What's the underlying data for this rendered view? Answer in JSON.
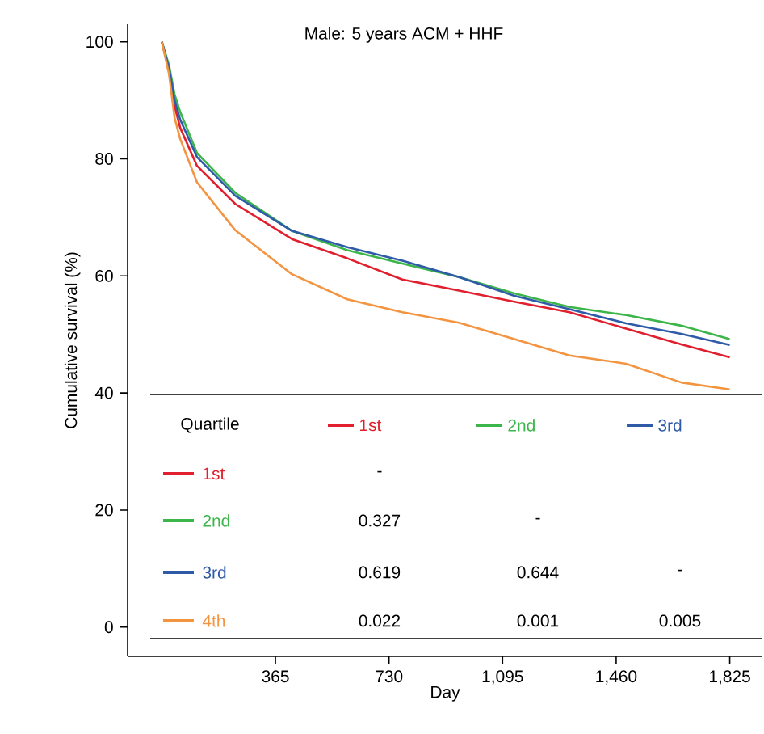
{
  "chart_data": {
    "type": "line",
    "title": "Male: 5 years ACM + HHF",
    "xlabel": "Day",
    "ylabel": "Cumulative survival (%)",
    "x": [
      0,
      23,
      41,
      59,
      113,
      236,
      418,
      596,
      773,
      955,
      1133,
      1310,
      1492,
      1669,
      1825
    ],
    "series": [
      {
        "name": "1st",
        "color": "#e0202e",
        "values": [
          100,
          95,
          89,
          85.3,
          78.8,
          72.3,
          66.3,
          63,
          59.4,
          57.5,
          55.6,
          53.8,
          51,
          48.3,
          46.1
        ]
      },
      {
        "name": "2nd",
        "color": "#3cb54a",
        "values": [
          100,
          96,
          91,
          88,
          81,
          74.2,
          67.7,
          64.4,
          62.1,
          59.8,
          57,
          54.7,
          53.3,
          51.5,
          49.2
        ]
      },
      {
        "name": "3rd",
        "color": "#2e5aa8",
        "values": [
          100,
          95.5,
          90,
          86.7,
          80.3,
          73.7,
          67.7,
          64.9,
          62.6,
          59.8,
          56.6,
          54.3,
          51.9,
          50.1,
          48.2
        ]
      },
      {
        "name": "4th",
        "color": "#f39440",
        "values": [
          100,
          94.5,
          87,
          83.4,
          76,
          67.8,
          60.3,
          56,
          53.8,
          52,
          49.2,
          46.4,
          45,
          41.8,
          40.6
        ]
      }
    ],
    "xlim": [
      -110,
      1930
    ],
    "ylim": [
      -5,
      103
    ],
    "xticks": [
      365,
      730,
      {
        "value": 1095,
        "label": "1,095"
      },
      {
        "value": 1460,
        "label": "1,460"
      },
      {
        "value": 1825,
        "label": "1,825"
      }
    ],
    "yticks": [
      0,
      20,
      40,
      60,
      80,
      100
    ],
    "legend": "bottom",
    "marker": "none",
    "line_style": "solid",
    "annotations": [
      "Quartile",
      "-",
      "0.327",
      "-",
      "0.619",
      "0.644",
      "-",
      "0.022",
      "0.001",
      "0.005"
    ]
  }
}
